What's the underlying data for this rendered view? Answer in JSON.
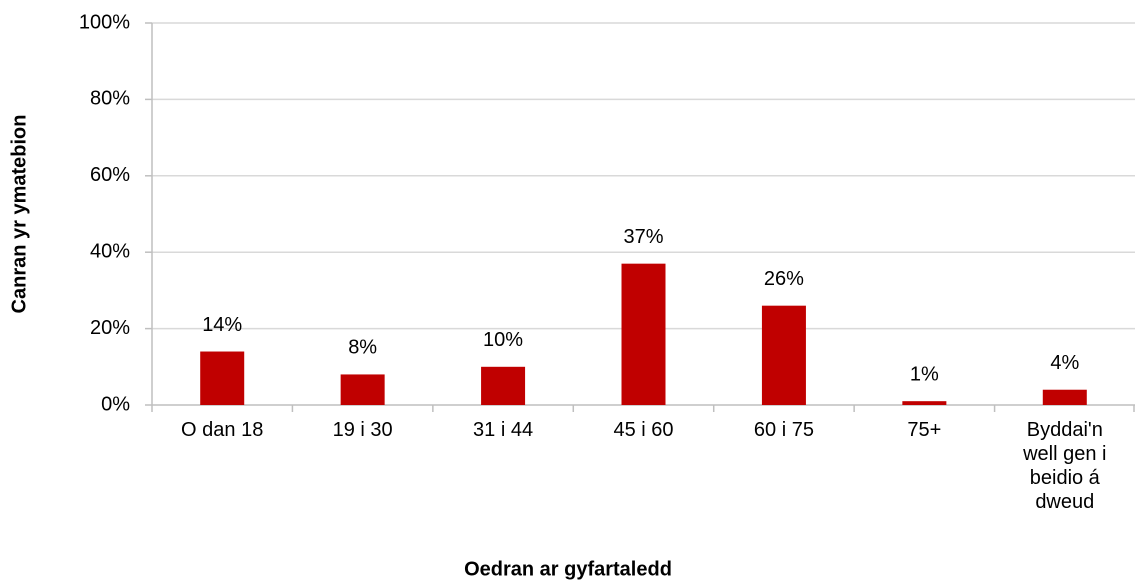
{
  "chart_data": {
    "type": "bar",
    "xlabel": "Oedran ar gyfartaledd",
    "ylabel": "Canran yr ymatebion",
    "categories": [
      "O dan 18",
      "19 i 30",
      "31 i 44",
      "45 i 60",
      "60 i 75",
      "75+",
      "Byddai'n well gen i beidio á dweud"
    ],
    "values": [
      14,
      8,
      10,
      37,
      26,
      1,
      4
    ],
    "value_labels": [
      "14%",
      "8%",
      "10%",
      "37%",
      "26%",
      "1%",
      "4%"
    ],
    "color": "#c00000",
    "ylim": [
      0,
      100
    ],
    "yticks": [
      {
        "value": 0,
        "label": "0%"
      },
      {
        "value": 20,
        "label": "20%"
      },
      {
        "value": 40,
        "label": "40%"
      },
      {
        "value": 60,
        "label": "60%"
      },
      {
        "value": 80,
        "label": "80%"
      },
      {
        "value": 100,
        "label": "100%"
      }
    ],
    "grid": true
  }
}
